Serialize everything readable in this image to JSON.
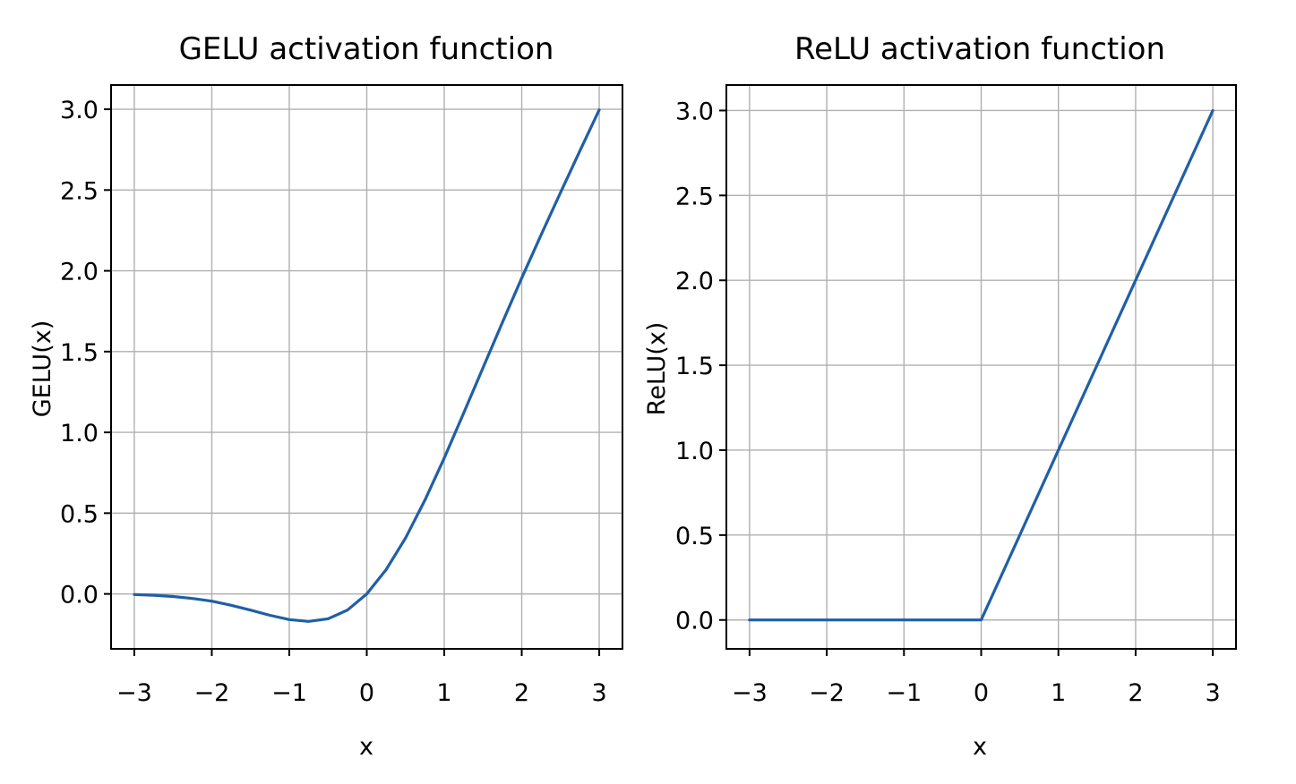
{
  "figure": {
    "line_color": "#1f5fa8",
    "grid_color": "#b0b0b0"
  },
  "chart_data": [
    {
      "type": "line",
      "title": "GELU activation function",
      "xlabel": "x",
      "ylabel": "GELU(x)",
      "grid": true,
      "xlim": [
        -3.3,
        3.3
      ],
      "ylim": [
        -0.34,
        3.15
      ],
      "xticks": [
        -3,
        -2,
        -1,
        0,
        1,
        2,
        3
      ],
      "xtick_labels": [
        "−3",
        "−2",
        "−1",
        "0",
        "1",
        "2",
        "3"
      ],
      "yticks": [
        0.0,
        0.5,
        1.0,
        1.5,
        2.0,
        2.5,
        3.0
      ],
      "ytick_labels": [
        "0.0",
        "0.5",
        "1.0",
        "1.5",
        "2.0",
        "2.5",
        "3.0"
      ],
      "series": [
        {
          "x": [
            -3.0,
            -2.75,
            -2.5,
            -2.25,
            -2.0,
            -1.75,
            -1.5,
            -1.25,
            -1.0,
            -0.75,
            -0.5,
            -0.25,
            0.0,
            0.25,
            0.5,
            0.75,
            1.0,
            1.25,
            1.5,
            1.75,
            2.0,
            2.25,
            2.5,
            2.75,
            3.0
          ],
          "y": [
            -0.004,
            -0.008,
            -0.016,
            -0.028,
            -0.045,
            -0.07,
            -0.1,
            -0.132,
            -0.159,
            -0.17,
            -0.154,
            -0.1,
            0.0,
            0.15,
            0.346,
            0.58,
            0.841,
            1.118,
            1.4,
            1.68,
            1.955,
            2.223,
            2.484,
            2.742,
            2.996
          ]
        }
      ]
    },
    {
      "type": "line",
      "title": "ReLU activation function",
      "xlabel": "x",
      "ylabel": "ReLU(x)",
      "grid": true,
      "xlim": [
        -3.3,
        3.3
      ],
      "ylim": [
        -0.17,
        3.15
      ],
      "xticks": [
        -3,
        -2,
        -1,
        0,
        1,
        2,
        3
      ],
      "xtick_labels": [
        "−3",
        "−2",
        "−1",
        "0",
        "1",
        "2",
        "3"
      ],
      "yticks": [
        0.0,
        0.5,
        1.0,
        1.5,
        2.0,
        2.5,
        3.0
      ],
      "ytick_labels": [
        "0.0",
        "0.5",
        "1.0",
        "1.5",
        "2.0",
        "2.5",
        "3.0"
      ],
      "series": [
        {
          "x": [
            -3.0,
            0.0,
            3.0
          ],
          "y": [
            0.0,
            0.0,
            3.0
          ]
        }
      ]
    }
  ]
}
